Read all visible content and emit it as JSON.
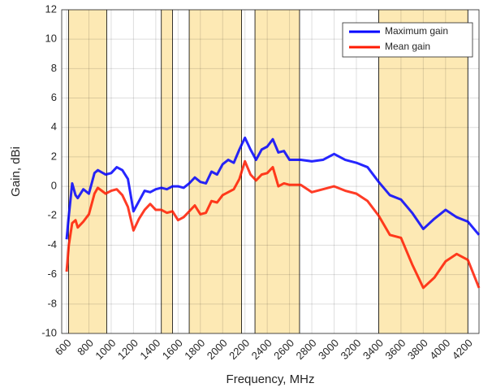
{
  "chart_data": {
    "type": "line",
    "xlabel": "Frequency, MHz",
    "ylabel": "Gain, dBi",
    "x": [
      600,
      620,
      650,
      680,
      700,
      750,
      800,
      850,
      880,
      950,
      1000,
      1050,
      1100,
      1150,
      1200,
      1250,
      1300,
      1350,
      1400,
      1450,
      1500,
      1550,
      1600,
      1650,
      1700,
      1750,
      1800,
      1850,
      1900,
      1950,
      2000,
      2050,
      2100,
      2150,
      2200,
      2250,
      2300,
      2350,
      2400,
      2450,
      2500,
      2550,
      2600,
      2700,
      2800,
      2900,
      3000,
      3100,
      3200,
      3300,
      3400,
      3500,
      3600,
      3700,
      3800,
      3900,
      4000,
      4100,
      4200,
      4300
    ],
    "series": [
      {
        "name": "Maximum gain",
        "color": "#0000ff",
        "values": [
          -3.6,
          -2,
          0.2,
          -0.6,
          -0.8,
          -0.2,
          -0.5,
          0.9,
          1.1,
          0.8,
          0.9,
          1.3,
          1.1,
          0.5,
          -1.7,
          -1.0,
          -0.3,
          -0.4,
          -0.2,
          -0.1,
          -0.2,
          0.0,
          0.0,
          -0.1,
          0.2,
          0.6,
          0.3,
          0.2,
          1.0,
          0.8,
          1.5,
          1.8,
          1.6,
          2.5,
          3.3,
          2.5,
          1.8,
          2.5,
          2.7,
          3.2,
          2.3,
          2.4,
          1.8,
          1.8,
          1.7,
          1.8,
          2.2,
          1.8,
          1.6,
          1.3,
          0.3,
          -0.6,
          -0.9,
          -1.8,
          -2.9,
          -2.2,
          -1.6,
          -2.1,
          -2.4,
          -3.3
        ]
      },
      {
        "name": "Mean gain",
        "color": "#ff1a00",
        "values": [
          -5.8,
          -4,
          -2.5,
          -2.3,
          -2.8,
          -2.4,
          -1.9,
          -0.5,
          -0.1,
          -0.5,
          -0.3,
          -0.2,
          -0.6,
          -1.4,
          -3.0,
          -2.2,
          -1.6,
          -1.2,
          -1.6,
          -1.6,
          -1.8,
          -1.7,
          -2.3,
          -2.1,
          -1.7,
          -1.3,
          -1.9,
          -1.8,
          -1.0,
          -1.1,
          -0.6,
          -0.4,
          -0.2,
          0.5,
          1.7,
          0.8,
          0.4,
          0.8,
          0.9,
          1.3,
          0.0,
          0.2,
          0.1,
          0.1,
          -0.4,
          -0.2,
          0.0,
          -0.3,
          -0.5,
          -1.0,
          -2.0,
          -3.3,
          -3.5,
          -5.3,
          -6.9,
          -6.2,
          -5.1,
          -4.6,
          -5.0,
          -6.9
        ]
      }
    ],
    "bands": [
      [
        617,
        960
      ],
      [
        1450,
        1550
      ],
      [
        1700,
        2170
      ],
      [
        2290,
        2690
      ],
      [
        3400,
        4200
      ]
    ],
    "band_color": "#fde9b4",
    "xlim": [
      556,
      4300
    ],
    "xticks": [
      600,
      800,
      1000,
      1200,
      1400,
      1600,
      1800,
      2000,
      2200,
      2400,
      2600,
      2800,
      3000,
      3200,
      3400,
      3600,
      3800,
      4000,
      4200
    ],
    "ylim": [
      -10,
      12
    ],
    "yticks": [
      -10,
      -8,
      -6,
      -4,
      -2,
      0,
      2,
      4,
      6,
      8,
      10,
      12
    ],
    "grid": true,
    "legend": "northeast"
  }
}
